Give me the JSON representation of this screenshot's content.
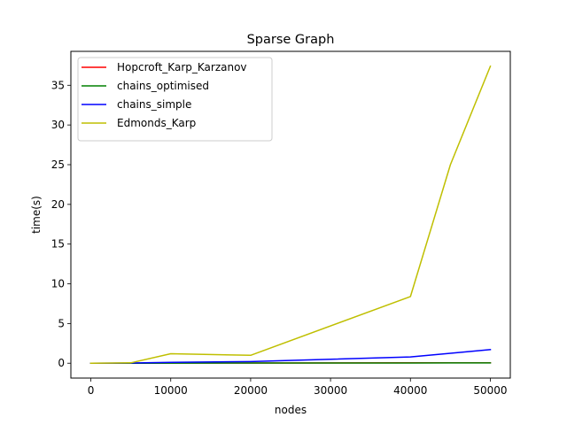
{
  "chart_data": {
    "type": "line",
    "title": "Sparse Graph",
    "xlabel": "nodes",
    "ylabel": "time(s)",
    "xlim": [
      -2500,
      52500
    ],
    "ylim": [
      -1.87,
      39.27
    ],
    "xticks": [
      0,
      10000,
      20000,
      30000,
      40000,
      50000
    ],
    "yticks": [
      0,
      5,
      10,
      15,
      20,
      25,
      30,
      35
    ],
    "grid": false,
    "legend_position": "top-left",
    "series": [
      {
        "name": "Hopcroft_Karp_Karzanov",
        "color": "#ff0000",
        "x": [
          0,
          5000,
          10000,
          20000,
          40000,
          45000,
          50000
        ],
        "y": [
          0.0,
          0.0,
          0.02,
          0.03,
          0.05,
          0.05,
          0.05
        ]
      },
      {
        "name": "chains_optimised",
        "color": "#008000",
        "x": [
          0,
          5000,
          10000,
          20000,
          40000,
          45000,
          50000
        ],
        "y": [
          0.0,
          0.0,
          0.01,
          0.02,
          0.03,
          0.04,
          0.04
        ]
      },
      {
        "name": "chains_simple",
        "color": "#0000ff",
        "x": [
          0,
          5000,
          10000,
          20000,
          40000,
          45000,
          50000
        ],
        "y": [
          0.0,
          0.02,
          0.12,
          0.2,
          0.8,
          1.25,
          1.72
        ]
      },
      {
        "name": "Edmonds_Karp",
        "color": "#bfbf00",
        "x": [
          0,
          5000,
          10000,
          20000,
          40000,
          45000,
          50000
        ],
        "y": [
          0.0,
          0.05,
          1.2,
          1.0,
          8.4,
          25.0,
          37.4
        ]
      }
    ]
  }
}
